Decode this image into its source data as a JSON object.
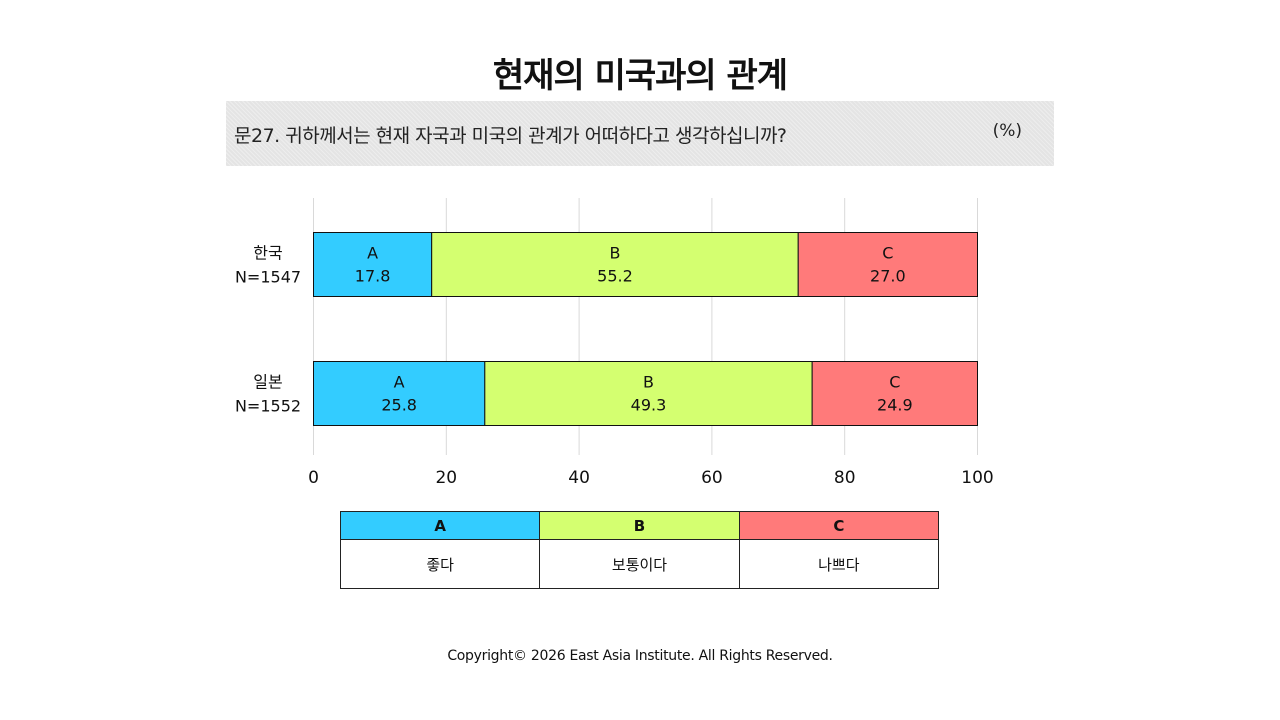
{
  "title": "현재의 미국과의 관계",
  "question": "문27. 귀하께서는 현재 자국과 미국의 관계가 어떠하다고 생각하십니까?",
  "unit": "(%)",
  "chart_data": {
    "type": "bar",
    "orientation": "horizontal",
    "stacked": true,
    "categories": [
      {
        "name": "한국",
        "n": "N=1547"
      },
      {
        "name": "일본",
        "n": "N=1552"
      }
    ],
    "series": [
      {
        "name": "A",
        "color": "#33ccff",
        "values": [
          17.8,
          25.8
        ],
        "labels": [
          "17.8",
          "25.8"
        ]
      },
      {
        "name": "B",
        "color": "#d4ff70",
        "values": [
          55.2,
          49.3
        ],
        "labels": [
          "55.2",
          "49.3"
        ]
      },
      {
        "name": "C",
        "color": "#ff7a7a",
        "values": [
          27.0,
          24.9
        ],
        "labels": [
          "27.0",
          "24.9"
        ]
      }
    ],
    "xlim": [
      0,
      100
    ],
    "xticks": [
      0,
      20,
      40,
      60,
      80,
      100
    ],
    "grid": true,
    "legend_position": "bottom"
  },
  "legend": {
    "headers": [
      "A",
      "B",
      "C"
    ],
    "descriptions": [
      "좋다",
      "보통이다",
      "나쁘다"
    ],
    "colors": [
      "#33ccff",
      "#d4ff70",
      "#ff7a7a"
    ]
  },
  "copyright": "Copyright© 2026 East Asia Institute. All Rights Reserved."
}
